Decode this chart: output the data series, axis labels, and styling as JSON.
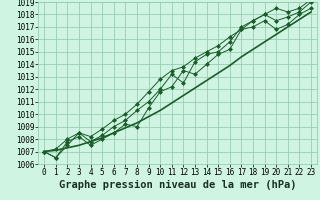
{
  "title": "Graphe pression niveau de la mer (hPa)",
  "bg_color": "#cff5e2",
  "grid_color": "#99ccb3",
  "line_color": "#1a5c2a",
  "marker_color": "#1a5c2a",
  "x_values": [
    0,
    1,
    2,
    3,
    4,
    5,
    6,
    7,
    8,
    9,
    10,
    11,
    12,
    13,
    14,
    15,
    16,
    17,
    18,
    19,
    20,
    21,
    22,
    23
  ],
  "series_smooth": [
    1007.0,
    1007.1,
    1007.3,
    1007.5,
    1007.8,
    1008.1,
    1008.5,
    1008.9,
    1009.3,
    1009.8,
    1010.3,
    1010.9,
    1011.5,
    1012.1,
    1012.7,
    1013.3,
    1013.9,
    1014.6,
    1015.2,
    1015.8,
    1016.4,
    1017.0,
    1017.6,
    1018.2
  ],
  "series_jagged1": [
    1007.0,
    1006.5,
    1007.8,
    1008.2,
    1007.5,
    1008.0,
    1008.5,
    1009.2,
    1009.0,
    1010.5,
    1011.8,
    1012.2,
    1013.5,
    1013.2,
    1014.0,
    1014.8,
    1015.2,
    1016.8,
    1017.0,
    1017.5,
    1016.8,
    1017.2,
    1018.0,
    1018.5
  ],
  "series_jagged2": [
    1007.0,
    1006.5,
    1007.5,
    1008.5,
    1007.8,
    1008.3,
    1009.0,
    1009.5,
    1010.3,
    1011.0,
    1012.0,
    1013.2,
    1012.5,
    1014.2,
    1014.8,
    1015.0,
    1015.8,
    1017.0,
    1017.5,
    1018.0,
    1017.5,
    1017.8,
    1018.2,
    1019.0
  ],
  "series_jagged3": [
    1007.0,
    1007.2,
    1008.0,
    1008.5,
    1008.2,
    1008.8,
    1009.5,
    1010.0,
    1010.8,
    1011.8,
    1012.8,
    1013.5,
    1013.8,
    1014.5,
    1015.0,
    1015.5,
    1016.2,
    1016.8,
    1017.5,
    1018.0,
    1018.5,
    1018.2,
    1018.5,
    1019.2
  ],
  "ylim": [
    1006,
    1019
  ],
  "yticks": [
    1006,
    1007,
    1008,
    1009,
    1010,
    1011,
    1012,
    1013,
    1014,
    1015,
    1016,
    1017,
    1018,
    1019
  ],
  "xticks": [
    0,
    1,
    2,
    3,
    4,
    5,
    6,
    7,
    8,
    9,
    10,
    11,
    12,
    13,
    14,
    15,
    16,
    17,
    18,
    19,
    20,
    21,
    22,
    23
  ],
  "xlim": [
    -0.5,
    23.5
  ],
  "title_fontsize": 7.5,
  "tick_fontsize": 5.5
}
